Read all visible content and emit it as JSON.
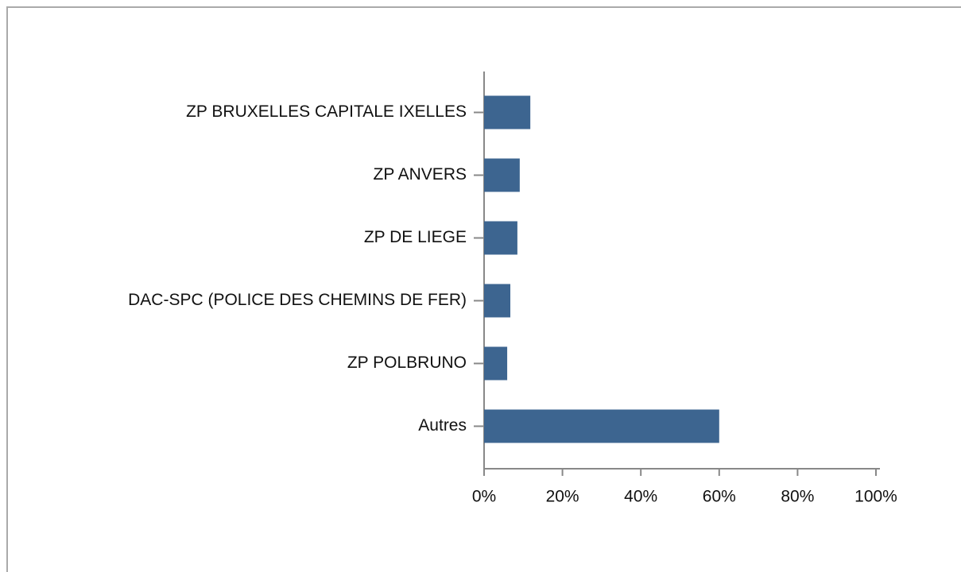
{
  "chart_data": {
    "type": "barh",
    "categories": [
      "ZP BRUXELLES CAPITALE IXELLES",
      "ZP ANVERS",
      "ZP DE LIEGE",
      "DAC-SPC (POLICE DES CHEMINS DE FER)",
      "ZP POLBRUNO",
      "Autres"
    ],
    "values": [
      11.8,
      9.1,
      8.5,
      6.7,
      5.9,
      60
    ],
    "color": "#3d6590",
    "xlim": [
      0,
      100
    ],
    "xticks": [
      {
        "value": 0,
        "label": "0%"
      },
      {
        "value": 20,
        "label": "20%"
      },
      {
        "value": 40,
        "label": "40%"
      },
      {
        "value": 60,
        "label": "60%"
      },
      {
        "value": 80,
        "label": "80%"
      },
      {
        "value": 100,
        "label": "100%"
      }
    ]
  }
}
